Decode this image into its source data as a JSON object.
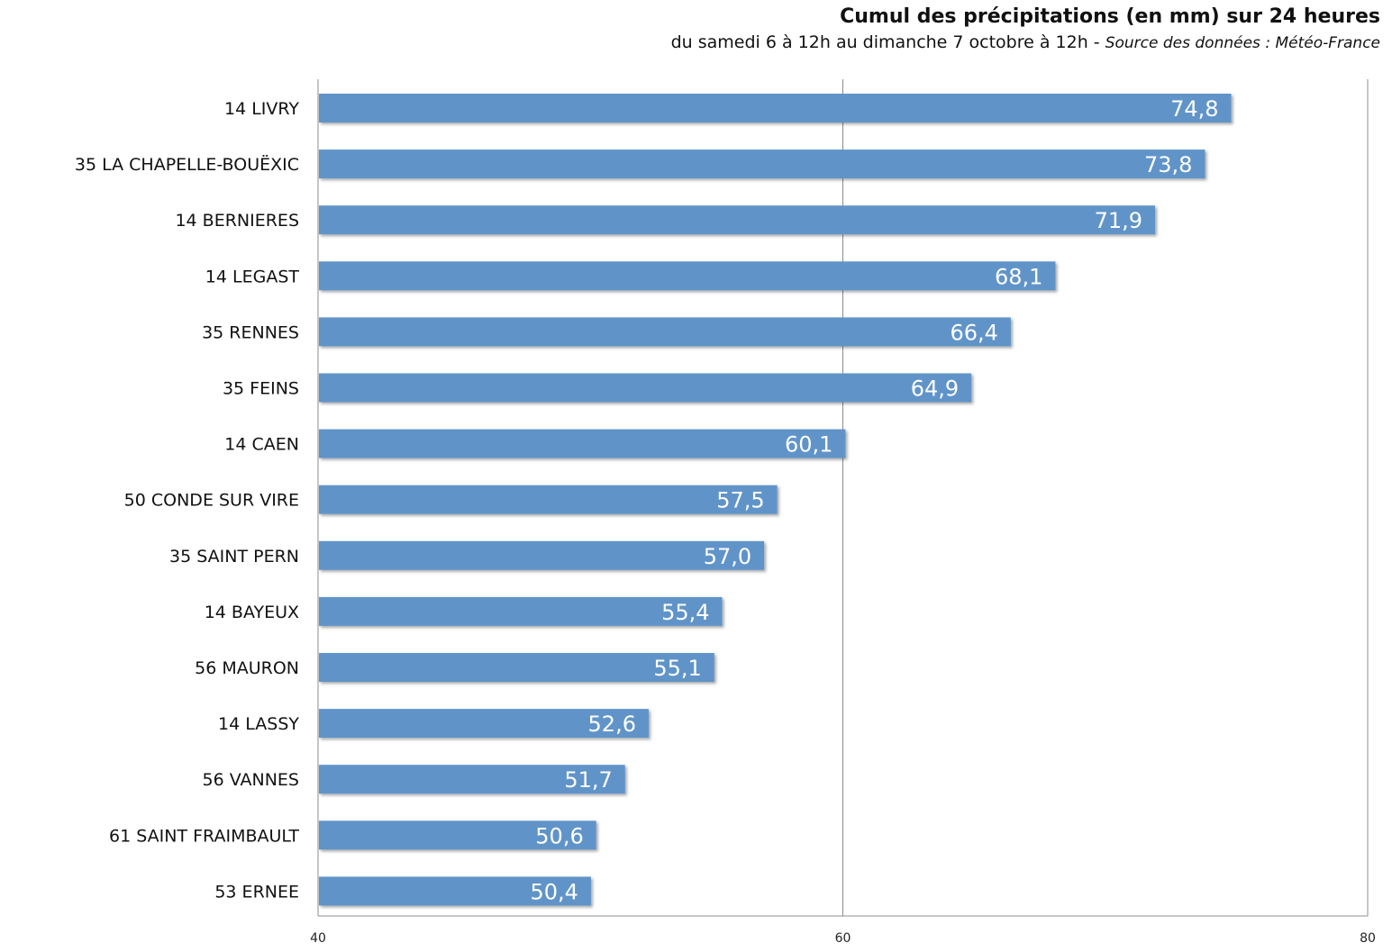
{
  "chart_data": {
    "type": "bar",
    "orientation": "horizontal",
    "title": "Cumul des précipitations (en mm) sur 24 heures",
    "subtitle": "du samedi 6 à 12h au dimanche 7 octobre à 12h -",
    "source": "Source des données : Météo-France",
    "categories": [
      "14 LIVRY",
      "35 LA CHAPELLE-BOUËXIC",
      "14 BERNIERES",
      "14 LEGAST",
      "35 RENNES",
      "35 FEINS",
      "14 CAEN",
      "50 CONDE SUR VIRE",
      "35 SAINT PERN",
      "14 BAYEUX",
      "56 MAURON",
      "14 LASSY",
      "56 VANNES",
      "61 SAINT FRAIMBAULT",
      "53 ERNEE"
    ],
    "values": [
      74.8,
      73.8,
      71.9,
      68.1,
      66.4,
      64.9,
      60.1,
      57.5,
      57.0,
      55.4,
      55.1,
      52.6,
      51.7,
      50.6,
      50.4
    ],
    "value_labels": [
      "74,8",
      "73,8",
      "71,9",
      "68,1",
      "66,4",
      "64,9",
      "60,1",
      "57,5",
      "57,0",
      "55,4",
      "55,1",
      "52,6",
      "51,7",
      "50,6",
      "50,4"
    ],
    "xlim": [
      40,
      80
    ],
    "x_ticks": [
      40,
      60,
      80
    ],
    "x_tick_labels": [
      "40",
      "60",
      "80"
    ],
    "grid": true,
    "xlabel": "",
    "ylabel": "",
    "colors": {
      "bar": "#6094c9",
      "grid": "#8c8c8c",
      "value_label": "#ffffff"
    }
  }
}
